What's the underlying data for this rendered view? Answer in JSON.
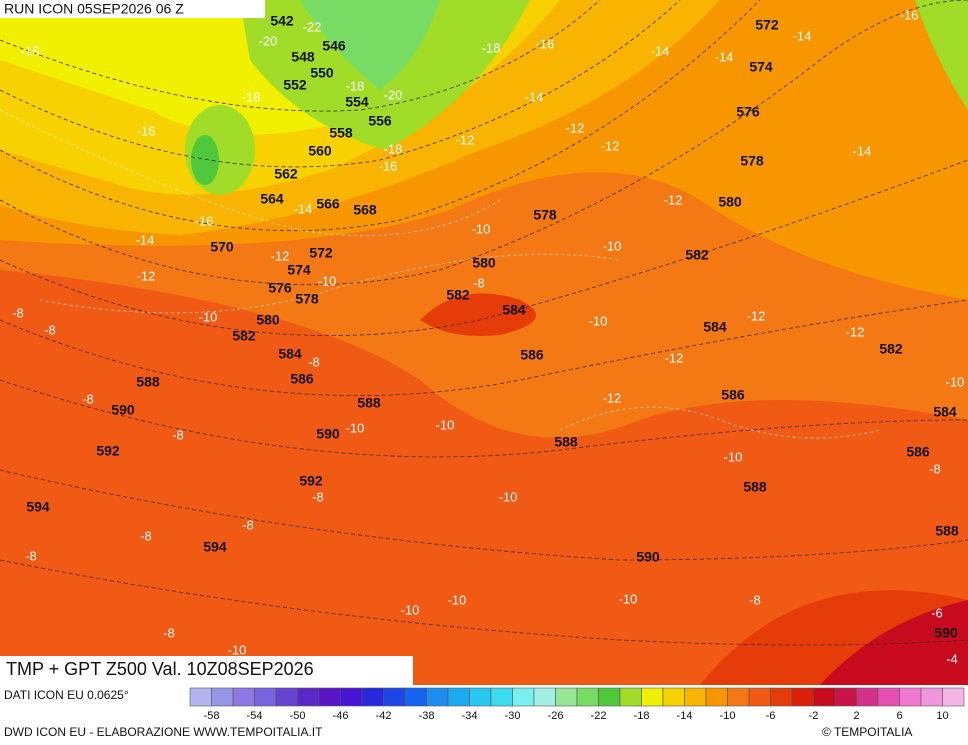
{
  "header": {
    "run": "RUN ICON 05SEP2026 06 Z"
  },
  "map": {
    "height_labels": [
      542,
      546,
      548,
      550,
      552,
      554,
      556,
      558,
      560,
      562,
      564,
      566,
      568,
      570,
      572,
      574,
      576,
      578,
      580,
      582,
      584,
      586,
      588,
      590,
      592,
      594,
      588,
      590,
      592,
      594,
      578,
      580,
      582,
      584,
      586,
      588,
      590,
      572,
      574,
      576,
      578,
      580,
      582,
      584,
      586,
      588,
      582,
      584,
      586,
      588,
      590
    ],
    "temperature_labels": [
      -16,
      -16,
      -20,
      -22,
      -18,
      -18,
      -20,
      -18,
      -16,
      -14,
      -16,
      -14,
      -12,
      -12,
      -10,
      -8,
      -8,
      -10,
      -8,
      -8,
      -8,
      -10,
      -10,
      -8,
      -8,
      -8,
      -8,
      -8,
      -10,
      -10,
      -10,
      -10,
      -10,
      -8,
      -6,
      -4,
      -8,
      -10,
      -10,
      -12,
      -12,
      -10,
      -12,
      -12,
      -10,
      -12,
      -10,
      -8,
      -12,
      -12,
      -12,
      -14,
      -16,
      -18,
      -14,
      -14,
      -14,
      -16,
      -14
    ]
  },
  "footer": {
    "product": "TMP + GPT Z500 Val. 10Z08SEP2026",
    "source": "DATI ICON EU 0.0625°",
    "credit": "DWD ICON EU - ELABORAZIONE WWW.TEMPOITALIA.IT",
    "brand": "© TEMPOITALIA"
  },
  "legend": {
    "colors": [
      "#b4b4f0",
      "#9696e6",
      "#8c78e6",
      "#7864dc",
      "#6446d2",
      "#5a28c8",
      "#5a14c8",
      "#4614d2",
      "#2828dc",
      "#1e46e6",
      "#1464f0",
      "#1e8cf0",
      "#1eaaf0",
      "#28c8f0",
      "#3cdcf0",
      "#78f0f0",
      "#a0f0e6",
      "#96e696",
      "#78dc64",
      "#50c83c",
      "#a0dc28",
      "#f0f000",
      "#f8d200",
      "#f8b400",
      "#f89600",
      "#f47814",
      "#f05a14",
      "#e63c0a",
      "#dc1e0a",
      "#c80a1e",
      "#c81446",
      "#d2328c",
      "#e650b4",
      "#f078d2",
      "#f096dc",
      "#f5b4e6"
    ],
    "ticks": [
      -58,
      -54,
      -50,
      -46,
      -42,
      -38,
      -34,
      -30,
      -26,
      -22,
      -18,
      -14,
      -10,
      -6,
      -2,
      2,
      6,
      10
    ]
  }
}
